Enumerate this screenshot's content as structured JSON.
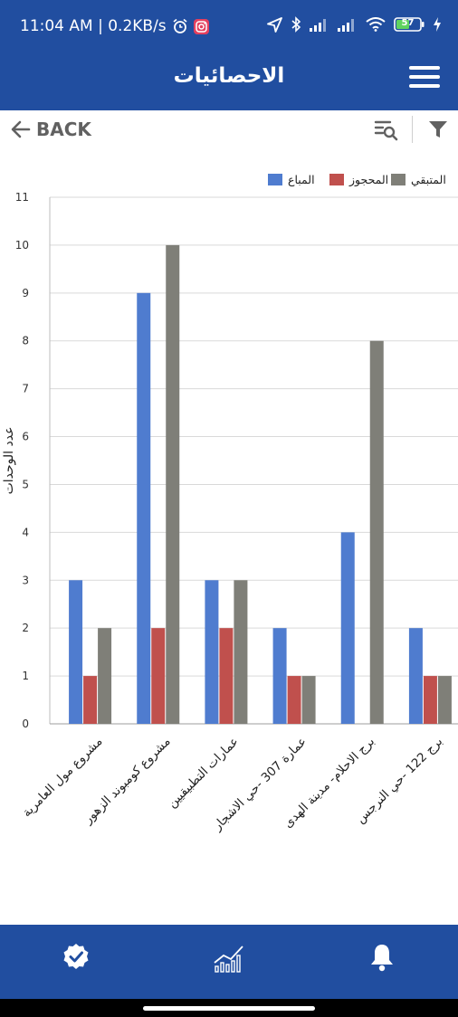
{
  "status_bar": {
    "time_speed": "11:04 AM | 0.2KB/s",
    "battery": "57"
  },
  "app_bar": {
    "title": "الاحصائيات",
    "menu_icon": "hamburger-menu-icon"
  },
  "toolbar": {
    "back_label": "BACK",
    "icons": [
      "arrow-left-icon",
      "search-list-icon",
      "filter-icon"
    ]
  },
  "chart_data": {
    "type": "bar",
    "ylabel": "عدد الوحدات",
    "xlabel": "",
    "ylim": [
      0,
      11
    ],
    "yticks": [
      0,
      1,
      2,
      3,
      4,
      5,
      6,
      7,
      8,
      9,
      10,
      11
    ],
    "grid": true,
    "legend_position": "top-right",
    "categories": [
      "مشروع مول العامرية",
      "مشروع كومبوند الزهور",
      "عمارات التطبيقيين",
      "عمارة 307 -حي الاشجار",
      "برج الاحلام- مدينة الهدى",
      "برج 122 -حي النرجس"
    ],
    "series": [
      {
        "name": "المباع",
        "color": "#4f7ccf",
        "values": [
          3,
          9,
          3,
          2,
          4,
          2
        ]
      },
      {
        "name": "المحجوز",
        "color": "#c0504d",
        "values": [
          1,
          2,
          2,
          1,
          0,
          1
        ]
      },
      {
        "name": "المتبقي",
        "color": "#7f7f78",
        "values": [
          2,
          10,
          3,
          1,
          8,
          1
        ]
      }
    ]
  },
  "bottom_nav": {
    "items": [
      "verified-badge-icon",
      "statistics-chart-icon",
      "bell-icon"
    ]
  }
}
